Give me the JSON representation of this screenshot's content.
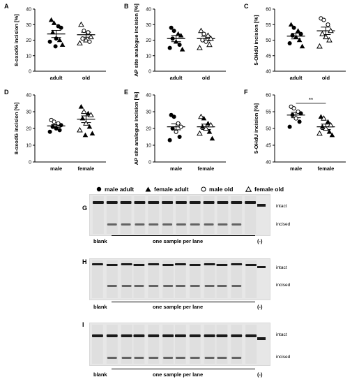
{
  "chart_data": [
    {
      "id": "A",
      "type": "scatter",
      "ylabel": "8-oxodG incision [%]",
      "ylim": [
        0,
        40
      ],
      "yticks": [
        0,
        10,
        20,
        30,
        40
      ],
      "categories": [
        "adult",
        "old"
      ],
      "groups": [
        {
          "category": "adult",
          "mean": 24,
          "sem": 2.3,
          "points": [
            {
              "y": 33,
              "m": "tri"
            },
            {
              "y": 31,
              "m": "tri"
            },
            {
              "y": 29,
              "m": "dot"
            },
            {
              "y": 28,
              "m": "dot"
            },
            {
              "y": 25,
              "m": "tri"
            },
            {
              "y": 21,
              "m": "dot"
            },
            {
              "y": 20,
              "m": "tri"
            },
            {
              "y": 19,
              "m": "dot"
            },
            {
              "y": 17,
              "m": "tri"
            },
            {
              "y": 16,
              "m": "dot"
            }
          ]
        },
        {
          "category": "old",
          "mean": 23.5,
          "sem": 1.6,
          "points": [
            {
              "y": 30,
              "m": "otri"
            },
            {
              "y": 26,
              "m": "odot"
            },
            {
              "y": 25,
              "m": "odot"
            },
            {
              "y": 22,
              "m": "otri"
            },
            {
              "y": 21,
              "m": "odot"
            },
            {
              "y": 20,
              "m": "otri"
            },
            {
              "y": 19,
              "m": "odot"
            },
            {
              "y": 18,
              "m": "otri"
            }
          ]
        }
      ]
    },
    {
      "id": "B",
      "type": "scatter",
      "ylabel": "AP site analogue incision [%]",
      "ylim": [
        0,
        40
      ],
      "yticks": [
        0,
        10,
        20,
        30,
        40
      ],
      "categories": [
        "adult",
        "old"
      ],
      "groups": [
        {
          "category": "adult",
          "mean": 21,
          "sem": 2.0,
          "points": [
            {
              "y": 28,
              "m": "dot"
            },
            {
              "y": 26,
              "m": "dot"
            },
            {
              "y": 24,
              "m": "tri"
            },
            {
              "y": 23,
              "m": "tri"
            },
            {
              "y": 21,
              "m": "dot"
            },
            {
              "y": 19,
              "m": "tri"
            },
            {
              "y": 17,
              "m": "dot"
            },
            {
              "y": 15,
              "m": "dot"
            },
            {
              "y": 14,
              "m": "tri"
            }
          ]
        },
        {
          "category": "old",
          "mean": 21,
          "sem": 1.5,
          "points": [
            {
              "y": 26,
              "m": "otri"
            },
            {
              "y": 24,
              "m": "odot"
            },
            {
              "y": 23,
              "m": "otri"
            },
            {
              "y": 21,
              "m": "otri"
            },
            {
              "y": 20,
              "m": "odot"
            },
            {
              "y": 19,
              "m": "odot"
            },
            {
              "y": 17,
              "m": "otri"
            },
            {
              "y": 15,
              "m": "otri"
            }
          ]
        }
      ]
    },
    {
      "id": "C",
      "type": "scatter",
      "ylabel": "5-OHdU incision [%]",
      "ylim": [
        40,
        60
      ],
      "yticks": [
        40,
        45,
        50,
        55,
        60
      ],
      "categories": [
        "adult",
        "old"
      ],
      "groups": [
        {
          "category": "adult",
          "mean": 51.3,
          "sem": 0.9,
          "points": [
            {
              "y": 55,
              "m": "tri"
            },
            {
              "y": 54,
              "m": "dot"
            },
            {
              "y": 53,
              "m": "tri"
            },
            {
              "y": 52,
              "m": "dot"
            },
            {
              "y": 51.5,
              "m": "dot"
            },
            {
              "y": 51,
              "m": "tri"
            },
            {
              "y": 50,
              "m": "tri"
            },
            {
              "y": 49,
              "m": "dot"
            },
            {
              "y": 48,
              "m": "tri"
            }
          ]
        },
        {
          "category": "old",
          "mean": 53,
          "sem": 1.2,
          "points": [
            {
              "y": 57,
              "m": "odot"
            },
            {
              "y": 56.5,
              "m": "odot"
            },
            {
              "y": 55,
              "m": "odot"
            },
            {
              "y": 53,
              "m": "otri"
            },
            {
              "y": 52,
              "m": "otri"
            },
            {
              "y": 51,
              "m": "otri"
            },
            {
              "y": 50,
              "m": "otri"
            },
            {
              "y": 48,
              "m": "otri"
            }
          ]
        }
      ]
    },
    {
      "id": "D",
      "type": "scatter",
      "ylabel": "8-oxodG incision [%]",
      "ylim": [
        0,
        40
      ],
      "yticks": [
        0,
        10,
        20,
        30,
        40
      ],
      "categories": [
        "male",
        "female"
      ],
      "groups": [
        {
          "category": "male",
          "mean": 21.5,
          "sem": 0.8,
          "points": [
            {
              "y": 25,
              "m": "odot"
            },
            {
              "y": 24,
              "m": "odot"
            },
            {
              "y": 23,
              "m": "odot"
            },
            {
              "y": 22,
              "m": "dot"
            },
            {
              "y": 21,
              "m": "dot"
            },
            {
              "y": 20,
              "m": "dot"
            },
            {
              "y": 19,
              "m": "dot"
            },
            {
              "y": 18,
              "m": "dot"
            }
          ]
        },
        {
          "category": "female",
          "mean": 25.5,
          "sem": 2.0,
          "points": [
            {
              "y": 33,
              "m": "tri"
            },
            {
              "y": 30,
              "m": "otri"
            },
            {
              "y": 29,
              "m": "tri"
            },
            {
              "y": 28,
              "m": "otri"
            },
            {
              "y": 26,
              "m": "tri"
            },
            {
              "y": 23,
              "m": "otri"
            },
            {
              "y": 21,
              "m": "tri"
            },
            {
              "y": 19,
              "m": "otri"
            },
            {
              "y": 17,
              "m": "tri"
            },
            {
              "y": 16,
              "m": "tri"
            }
          ]
        }
      ]
    },
    {
      "id": "E",
      "type": "scatter",
      "ylabel": "AP site analogue incision [%]",
      "ylim": [
        0,
        40
      ],
      "yticks": [
        0,
        10,
        20,
        30,
        40
      ],
      "categories": [
        "male",
        "female"
      ],
      "groups": [
        {
          "category": "male",
          "mean": 21,
          "sem": 1.8,
          "points": [
            {
              "y": 28,
              "m": "dot"
            },
            {
              "y": 27,
              "m": "dot"
            },
            {
              "y": 23,
              "m": "odot"
            },
            {
              "y": 21,
              "m": "odot"
            },
            {
              "y": 20,
              "m": "dot"
            },
            {
              "y": 18,
              "m": "odot"
            },
            {
              "y": 15,
              "m": "dot"
            },
            {
              "y": 13,
              "m": "dot"
            }
          ]
        },
        {
          "category": "female",
          "mean": 21,
          "sem": 1.6,
          "points": [
            {
              "y": 27,
              "m": "otri"
            },
            {
              "y": 26,
              "m": "tri"
            },
            {
              "y": 23,
              "m": "tri"
            },
            {
              "y": 22,
              "m": "otri"
            },
            {
              "y": 21,
              "m": "tri"
            },
            {
              "y": 20,
              "m": "otri"
            },
            {
              "y": 18,
              "m": "tri"
            },
            {
              "y": 17,
              "m": "otri"
            },
            {
              "y": 14,
              "m": "tri"
            }
          ]
        }
      ]
    },
    {
      "id": "F",
      "type": "scatter",
      "ylabel": "5-OHdU incision [%]",
      "ylim": [
        40,
        60
      ],
      "yticks": [
        40,
        45,
        50,
        55,
        60
      ],
      "categories": [
        "male",
        "female"
      ],
      "significance": {
        "label": "**",
        "between": [
          "male",
          "female"
        ],
        "y": 57.5
      },
      "groups": [
        {
          "category": "male",
          "mean": 54,
          "sem": 0.8,
          "points": [
            {
              "y": 56.5,
              "m": "odot"
            },
            {
              "y": 56,
              "m": "odot"
            },
            {
              "y": 55,
              "m": "odot"
            },
            {
              "y": 54.5,
              "m": "dot"
            },
            {
              "y": 54,
              "m": "dot"
            },
            {
              "y": 53,
              "m": "odot"
            },
            {
              "y": 52,
              "m": "dot"
            },
            {
              "y": 50.5,
              "m": "dot"
            }
          ]
        },
        {
          "category": "female",
          "mean": 50.5,
          "sem": 0.8,
          "points": [
            {
              "y": 53.5,
              "m": "tri"
            },
            {
              "y": 53,
              "m": "otri"
            },
            {
              "y": 52,
              "m": "tri"
            },
            {
              "y": 51,
              "m": "otri"
            },
            {
              "y": 50.5,
              "m": "tri"
            },
            {
              "y": 50,
              "m": "otri"
            },
            {
              "y": 49,
              "m": "tri"
            },
            {
              "y": 48.5,
              "m": "otri"
            },
            {
              "y": 48,
              "m": "tri"
            }
          ]
        }
      ]
    }
  ],
  "legend": [
    {
      "marker": "dot",
      "label": "male adult"
    },
    {
      "marker": "tri",
      "label": "female adult"
    },
    {
      "marker": "odot",
      "label": "male old"
    },
    {
      "marker": "otri",
      "label": "female old"
    }
  ],
  "gels": [
    {
      "id": "G",
      "top_label": "intact",
      "bottom_label": "incised",
      "blank": "blank",
      "samples": "one sample per lane",
      "control": "(-)"
    },
    {
      "id": "H",
      "top_label": "intact",
      "bottom_label": "incised",
      "blank": "blank",
      "samples": "one sample per lane",
      "control": "(-)"
    },
    {
      "id": "I",
      "top_label": "intact",
      "bottom_label": "incised",
      "blank": "blank",
      "samples": "one sample per lane",
      "control": "(-)"
    }
  ],
  "colors": {
    "marker": "#000000",
    "gel_band": "#1a1a1a",
    "gel_bg": "#e7e7e7"
  }
}
